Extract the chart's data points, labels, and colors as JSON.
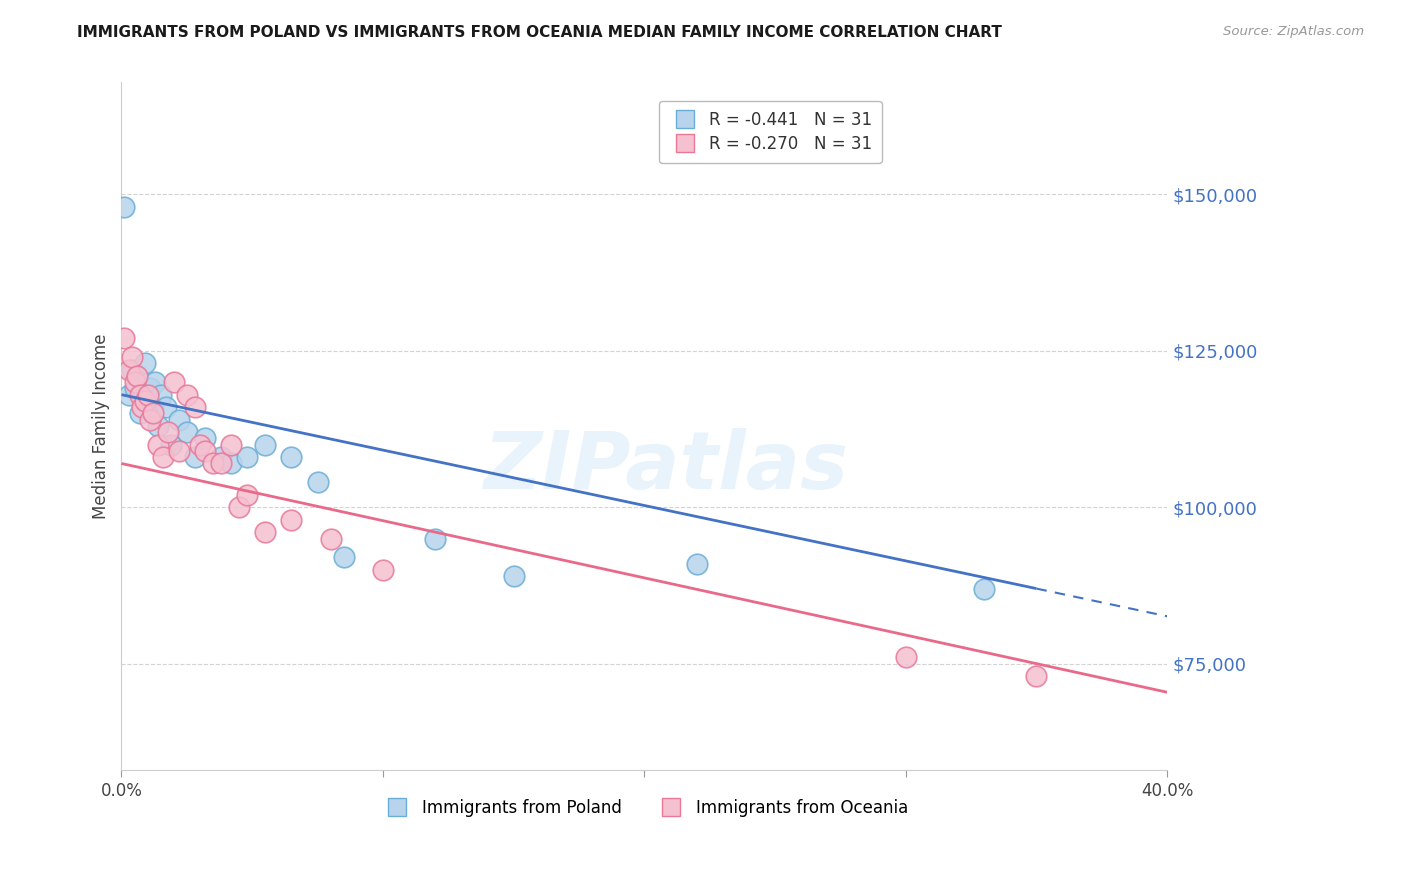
{
  "title": "IMMIGRANTS FROM POLAND VS IMMIGRANTS FROM OCEANIA MEDIAN FAMILY INCOME CORRELATION CHART",
  "source": "Source: ZipAtlas.com",
  "ylabel": "Median Family Income",
  "xlim": [
    0.0,
    0.4
  ],
  "ylim": [
    58000,
    168000
  ],
  "yticks": [
    75000,
    100000,
    125000,
    150000
  ],
  "ytick_labels": [
    "$75,000",
    "$100,000",
    "$125,000",
    "$150,000"
  ],
  "poland_color": "#b8d4ec",
  "poland_edge_color": "#6aaed6",
  "oceania_color": "#f5c0d0",
  "oceania_edge_color": "#e87898",
  "regression_poland_color": "#4472C4",
  "regression_oceania_color": "#E8698A",
  "legend_poland_label": "Immigrants from Poland",
  "legend_oceania_label": "Immigrants from Oceania",
  "R_poland": "-0.441",
  "N_poland": "31",
  "R_oceania": "-0.270",
  "N_oceania": "31",
  "poland_x": [
    0.001,
    0.003,
    0.004,
    0.005,
    0.006,
    0.007,
    0.008,
    0.009,
    0.01,
    0.011,
    0.012,
    0.013,
    0.014,
    0.015,
    0.017,
    0.019,
    0.022,
    0.025,
    0.028,
    0.032,
    0.038,
    0.042,
    0.048,
    0.055,
    0.065,
    0.075,
    0.085,
    0.12,
    0.15,
    0.22,
    0.33
  ],
  "poland_y": [
    148000,
    118000,
    122000,
    119000,
    121000,
    115000,
    118000,
    123000,
    117000,
    119000,
    116000,
    120000,
    113000,
    118000,
    116000,
    110000,
    114000,
    112000,
    108000,
    111000,
    108000,
    107000,
    108000,
    110000,
    108000,
    104000,
    92000,
    95000,
    89000,
    91000,
    87000
  ],
  "oceania_x": [
    0.001,
    0.003,
    0.004,
    0.005,
    0.006,
    0.007,
    0.008,
    0.009,
    0.01,
    0.011,
    0.012,
    0.014,
    0.016,
    0.018,
    0.02,
    0.022,
    0.025,
    0.028,
    0.03,
    0.032,
    0.035,
    0.038,
    0.042,
    0.045,
    0.048,
    0.055,
    0.065,
    0.08,
    0.1,
    0.3,
    0.35
  ],
  "oceania_y": [
    127000,
    122000,
    124000,
    120000,
    121000,
    118000,
    116000,
    117000,
    118000,
    114000,
    115000,
    110000,
    108000,
    112000,
    120000,
    109000,
    118000,
    116000,
    110000,
    109000,
    107000,
    107000,
    110000,
    100000,
    102000,
    96000,
    98000,
    95000,
    90000,
    76000,
    73000
  ],
  "watermark": "ZIPatlas",
  "background_color": "#ffffff",
  "grid_color": "#c8c8c8"
}
